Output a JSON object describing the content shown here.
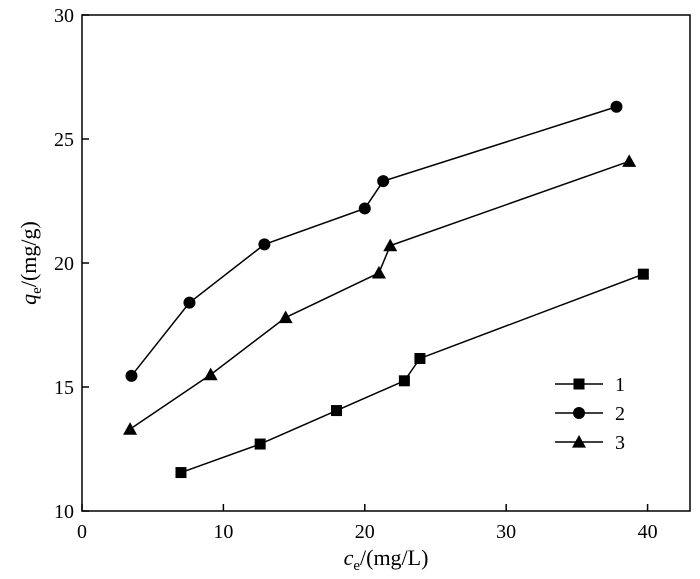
{
  "chart_data": {
    "type": "line",
    "xlabel": {
      "symbol": "c",
      "subscript": "e",
      "unit": "/(mg/L)"
    },
    "ylabel": {
      "symbol": "q",
      "subscript": "e",
      "unit": "/(mg/g)"
    },
    "xlim": [
      0,
      43
    ],
    "ylim": [
      10,
      30
    ],
    "xticks": [
      0,
      10,
      20,
      30,
      40
    ],
    "yticks": [
      10,
      15,
      20,
      25,
      30
    ],
    "grid": false,
    "legend_position": "lower-right",
    "series": [
      {
        "name": "1",
        "marker": "square",
        "x": [
          7.0,
          12.6,
          18.0,
          22.8,
          23.9,
          39.7
        ],
        "y": [
          11.55,
          12.7,
          14.05,
          15.25,
          16.15,
          19.55
        ]
      },
      {
        "name": "2",
        "marker": "circle",
        "x": [
          3.5,
          7.6,
          12.9,
          20.0,
          21.3,
          37.8
        ],
        "y": [
          15.45,
          18.4,
          20.75,
          22.2,
          23.3,
          26.3
        ]
      },
      {
        "name": "3",
        "marker": "triangle",
        "x": [
          3.4,
          9.1,
          14.4,
          21.0,
          21.8,
          38.7
        ],
        "y": [
          13.3,
          15.5,
          17.8,
          19.6,
          20.7,
          24.1
        ]
      }
    ]
  }
}
